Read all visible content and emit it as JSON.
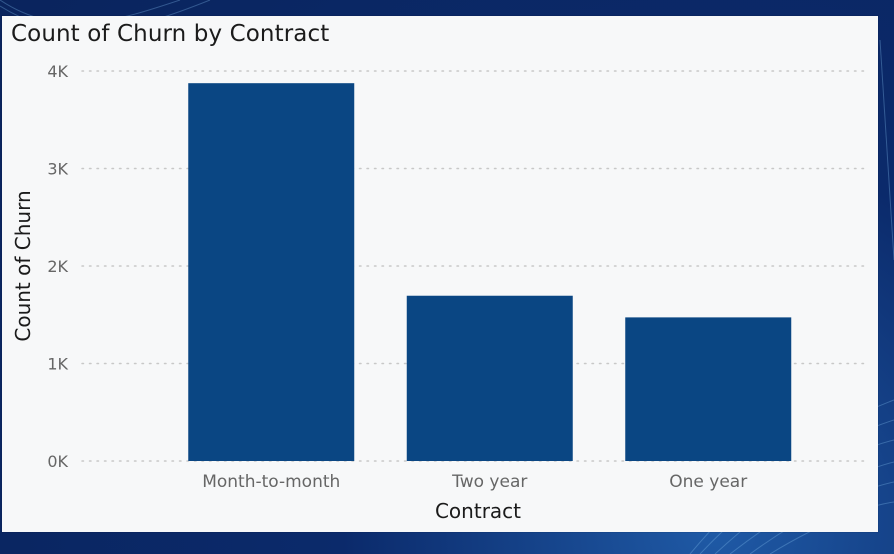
{
  "colors": {
    "background": "#0b2a6b",
    "card": "#f7f8f9",
    "bar": "#0a4683",
    "grid": "#c8c8c8",
    "tick_text": "#666666",
    "label_text": "#1b1b1b"
  },
  "chart_data": {
    "type": "bar",
    "title": "Count of Churn by Contract",
    "xlabel": "Contract",
    "ylabel": "Count of Churn",
    "categories": [
      "Month-to-month",
      "Two year",
      "One year"
    ],
    "values": [
      3875,
      1695,
      1473
    ],
    "ylim": [
      0,
      4000
    ],
    "yticks": [
      0,
      1000,
      2000,
      3000,
      4000
    ],
    "ytick_labels": [
      "0K",
      "1K",
      "2K",
      "3K",
      "4K"
    ],
    "grid": true,
    "legend": "none"
  }
}
